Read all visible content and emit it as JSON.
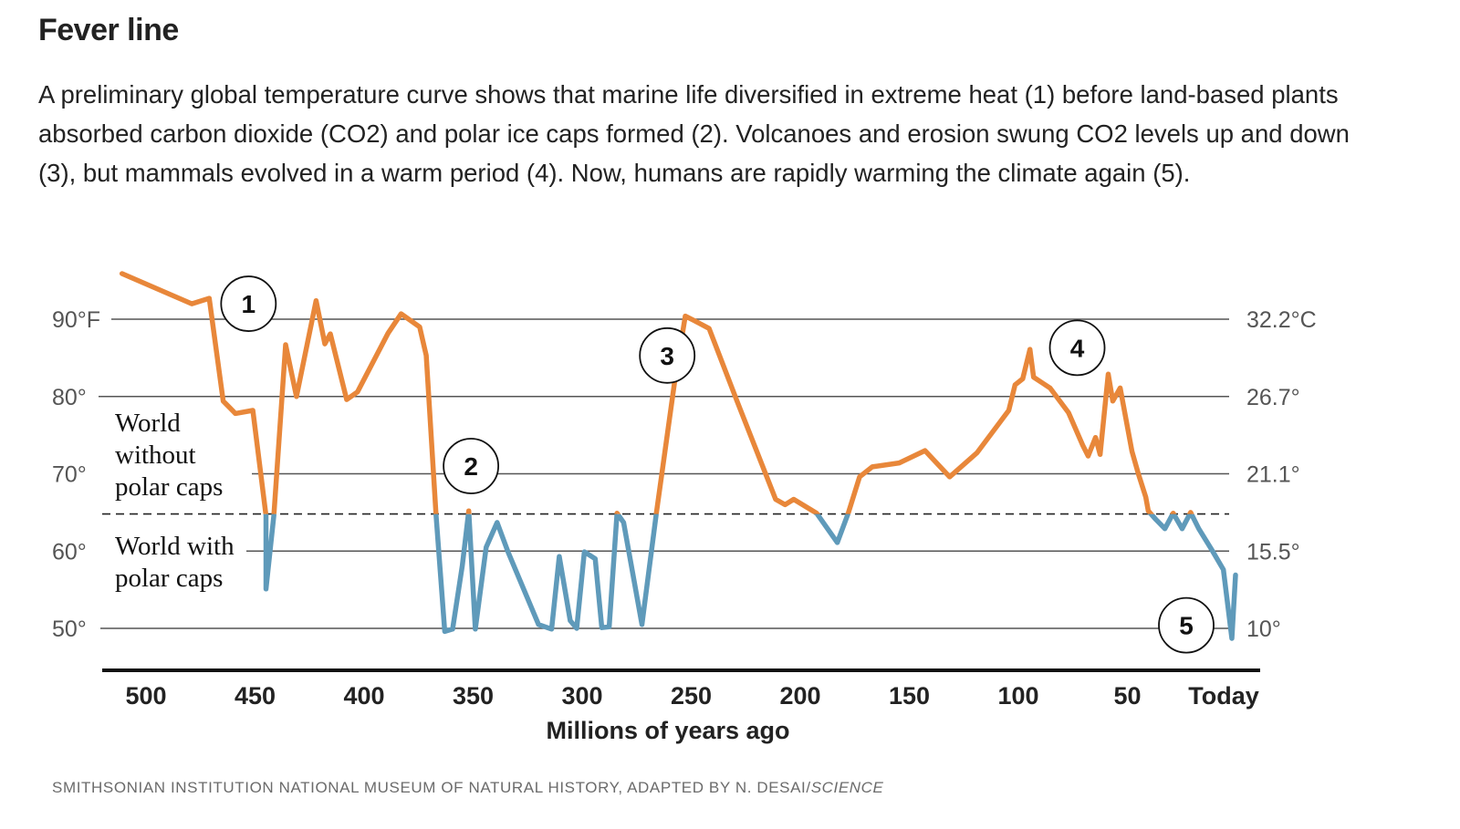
{
  "title": "Fever line",
  "subtitle": "A preliminary global temperature curve shows that marine life diversified in extreme heat (1) before land-based plants absorbed carbon dioxide (CO2) and polar ice caps formed (2). Volcanoes and erosion swung CO2 levels up and down (3), but mammals evolved in a warm period (4). Now, humans are rapidly warming the climate again (5).",
  "credit": {
    "text": "SMITHSONIAN INSTITUTION NATIONAL MUSEUM OF NATURAL HISTORY, ADAPTED BY N. DESAI/",
    "italic": "SCIENCE"
  },
  "colors": {
    "warm": "#e8873a",
    "cold": "#5f9aba",
    "grid": "#555555",
    "axis": "#111111"
  },
  "chart_data": {
    "type": "line",
    "title": "Fever line",
    "xlabel": "Millions of years ago",
    "ylabel_left": "°F",
    "ylabel_right": "°C",
    "xlim": [
      511,
      0
    ],
    "ylim": [
      45,
      96
    ],
    "grid": true,
    "threshold_f": 64.8,
    "region_labels": {
      "above": "World without polar caps",
      "below": "World with polar caps"
    },
    "x_ticks": [
      {
        "value": 500,
        "label": "500"
      },
      {
        "value": 450,
        "label": "450"
      },
      {
        "value": 400,
        "label": "400"
      },
      {
        "value": 350,
        "label": "350"
      },
      {
        "value": 300,
        "label": "300"
      },
      {
        "value": 250,
        "label": "250"
      },
      {
        "value": 200,
        "label": "200"
      },
      {
        "value": 150,
        "label": "150"
      },
      {
        "value": 100,
        "label": "100"
      },
      {
        "value": 50,
        "label": "50"
      },
      {
        "value": 4,
        "label": "Today"
      }
    ],
    "y_ticks": [
      {
        "f": 90,
        "label_f": "90°F",
        "label_c": "32.2°C"
      },
      {
        "f": 80,
        "label_f": "80°",
        "label_c": "26.7°"
      },
      {
        "f": 70,
        "label_f": "70°",
        "label_c": "21.1°"
      },
      {
        "f": 60,
        "label_f": "60°",
        "label_c": "15.5°"
      },
      {
        "f": 50,
        "label_f": "50°",
        "label_c": "10°"
      }
    ],
    "annotations": [
      {
        "label": "1",
        "ma": 453,
        "f": 92
      },
      {
        "label": "2",
        "ma": 351,
        "f": 71
      },
      {
        "label": "3",
        "ma": 261,
        "f": 85.3
      },
      {
        "label": "4",
        "ma": 73,
        "f": 86.3
      },
      {
        "label": "5",
        "ma": 23,
        "f": 50.4
      }
    ],
    "series": [
      {
        "name": "Global mean temperature (°F)",
        "points": [
          [
            511,
            95.9
          ],
          [
            479,
            92.0
          ],
          [
            471,
            92.7
          ],
          [
            464.6,
            79.4
          ],
          [
            459,
            77.8
          ],
          [
            451,
            78.2
          ],
          [
            445,
            64.6
          ],
          [
            445,
            55.1
          ],
          [
            441.4,
            64.6
          ],
          [
            436,
            86.7
          ],
          [
            431,
            80.0
          ],
          [
            422,
            92.4
          ],
          [
            418,
            86.8
          ],
          [
            415.5,
            88.1
          ],
          [
            408,
            79.6
          ],
          [
            403,
            80.6
          ],
          [
            389,
            88.2
          ],
          [
            383,
            90.7
          ],
          [
            374.5,
            89.0
          ],
          [
            371.5,
            85.3
          ],
          [
            367,
            64.6
          ],
          [
            363,
            49.6
          ],
          [
            359.4,
            49.9
          ],
          [
            355,
            58.1
          ],
          [
            352,
            65.2
          ],
          [
            349,
            49.9
          ],
          [
            344,
            60.5
          ],
          [
            339,
            63.7
          ],
          [
            334,
            59.9
          ],
          [
            320,
            50.5
          ],
          [
            314,
            49.9
          ],
          [
            310.5,
            59.3
          ],
          [
            305.5,
            51.0
          ],
          [
            302.5,
            50.0
          ],
          [
            299,
            59.9
          ],
          [
            294,
            59.0
          ],
          [
            291,
            50.1
          ],
          [
            287.6,
            50.2
          ],
          [
            284,
            64.9
          ],
          [
            281,
            63.7
          ],
          [
            272.6,
            50.5
          ],
          [
            266,
            64.9
          ],
          [
            257.7,
            81.7
          ],
          [
            252.7,
            90.4
          ],
          [
            248.5,
            89.8
          ],
          [
            241.8,
            88.8
          ],
          [
            229,
            79.4
          ],
          [
            211.3,
            66.7
          ],
          [
            207,
            66.0
          ],
          [
            203,
            66.7
          ],
          [
            192.5,
            64.9
          ],
          [
            183,
            61.1
          ],
          [
            178,
            64.9
          ],
          [
            172.8,
            69.6
          ],
          [
            167,
            70.9
          ],
          [
            154.6,
            71.4
          ],
          [
            142.8,
            73.0
          ],
          [
            131.5,
            69.6
          ],
          [
            119,
            72.7
          ],
          [
            104.4,
            78.2
          ],
          [
            101.5,
            81.5
          ],
          [
            98,
            82.3
          ],
          [
            94.7,
            86.1
          ],
          [
            93,
            82.5
          ],
          [
            85.5,
            81.1
          ],
          [
            77,
            77.9
          ],
          [
            70.5,
            73.7
          ],
          [
            68,
            72.3
          ],
          [
            64.6,
            74.7
          ],
          [
            62.5,
            72.5
          ],
          [
            58.8,
            82.9
          ],
          [
            56.7,
            79.4
          ],
          [
            53.3,
            81.1
          ],
          [
            47.9,
            72.9
          ],
          [
            45,
            70.0
          ],
          [
            41.6,
            67.0
          ],
          [
            40.4,
            65.2
          ],
          [
            37,
            64.1
          ],
          [
            32.8,
            62.9
          ],
          [
            29,
            64.9
          ],
          [
            24.9,
            62.9
          ],
          [
            21,
            65.0
          ],
          [
            17.3,
            62.9
          ],
          [
            11.4,
            60.2
          ],
          [
            6,
            57.6
          ],
          [
            2.1,
            48.7
          ],
          [
            0.4,
            56.9
          ]
        ]
      }
    ]
  }
}
